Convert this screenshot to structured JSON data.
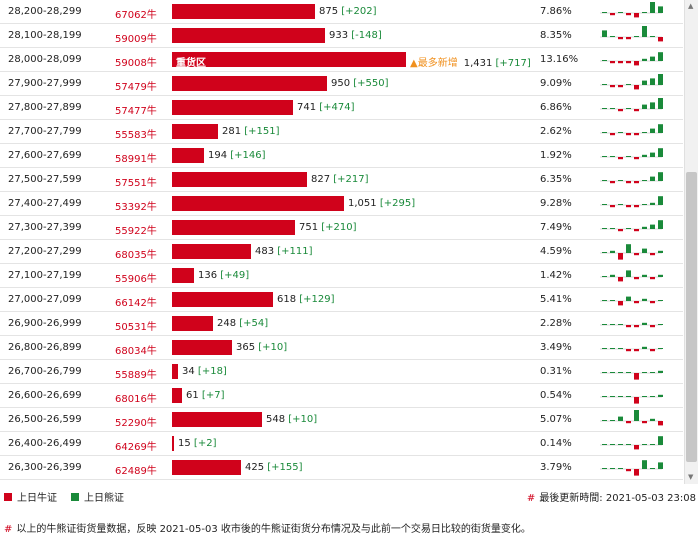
{
  "colors": {
    "bull": "#d0021b",
    "bear": "#1a8a3a",
    "newest": "#f0901e"
  },
  "table": {
    "max_qty": 1431,
    "rows": [
      {
        "range": "28,200-28,299",
        "code": "67062牛",
        "qty": "875",
        "delta": "[+202]",
        "qty_value": 875,
        "pct": "7.86%",
        "spark": [
          0,
          -1,
          0,
          -1,
          -2,
          0,
          5,
          3
        ]
      },
      {
        "range": "28,100-28,199",
        "code": "59009牛",
        "qty": "933",
        "delta": "[-148]",
        "qty_value": 933,
        "pct": "8.35%",
        "spark": [
          3,
          0,
          -1,
          -1,
          0,
          5,
          0,
          -2
        ]
      },
      {
        "range": "28,000-28,099",
        "code": "59008牛",
        "qty": "1,431",
        "delta": "[+717]",
        "qty_value": 1431,
        "pct": "13.16%",
        "tag": "重货区",
        "newest": "▲最多新增",
        "spark": [
          0,
          -1,
          -1,
          -1,
          -2,
          1,
          2,
          4
        ]
      },
      {
        "range": "27,900-27,999",
        "code": "57479牛",
        "qty": "950",
        "delta": "[+550]",
        "qty_value": 950,
        "pct": "9.09%",
        "spark": [
          0,
          -1,
          -1,
          0,
          -2,
          2,
          3,
          5
        ]
      },
      {
        "range": "27,800-27,899",
        "code": "57477牛",
        "qty": "741",
        "delta": "[+474]",
        "qty_value": 741,
        "pct": "6.86%",
        "spark": [
          0,
          0,
          -1,
          0,
          -1,
          2,
          3,
          5
        ]
      },
      {
        "range": "27,700-27,799",
        "code": "55583牛",
        "qty": "281",
        "delta": "[+151]",
        "qty_value": 281,
        "pct": "2.62%",
        "spark": [
          0,
          -1,
          0,
          -1,
          -1,
          0,
          2,
          4
        ]
      },
      {
        "range": "27,600-27,699",
        "code": "58991牛",
        "qty": "194",
        "delta": "[+146]",
        "qty_value": 194,
        "pct": "1.92%",
        "spark": [
          0,
          0,
          -1,
          0,
          -1,
          1,
          2,
          4
        ]
      },
      {
        "range": "27,500-27,599",
        "code": "57551牛",
        "qty": "827",
        "delta": "[+217]",
        "qty_value": 827,
        "pct": "6.35%",
        "spark": [
          0,
          -1,
          0,
          -1,
          -1,
          0,
          2,
          4
        ]
      },
      {
        "range": "27,400-27,499",
        "code": "53392牛",
        "qty": "1,051",
        "delta": "[+295]",
        "qty_value": 1051,
        "pct": "9.28%",
        "spark": [
          0,
          -1,
          0,
          -1,
          -1,
          0,
          1,
          4
        ]
      },
      {
        "range": "27,300-27,399",
        "code": "55922牛",
        "qty": "751",
        "delta": "[+210]",
        "qty_value": 751,
        "pct": "7.49%",
        "spark": [
          0,
          0,
          -1,
          0,
          -1,
          1,
          2,
          4
        ]
      },
      {
        "range": "27,200-27,299",
        "code": "68035牛",
        "qty": "483",
        "delta": "[+111]",
        "qty_value": 483,
        "pct": "4.59%",
        "spark": [
          0,
          1,
          -3,
          4,
          -1,
          2,
          -1,
          1
        ]
      },
      {
        "range": "27,100-27,199",
        "code": "55906牛",
        "qty": "136",
        "delta": "[+49]",
        "qty_value": 136,
        "pct": "1.42%",
        "spark": [
          0,
          1,
          -2,
          3,
          -1,
          1,
          -1,
          1
        ]
      },
      {
        "range": "27,000-27,099",
        "code": "66142牛",
        "qty": "618",
        "delta": "[+129]",
        "qty_value": 618,
        "pct": "5.41%",
        "spark": [
          0,
          0,
          -2,
          2,
          -1,
          1,
          -1,
          0
        ]
      },
      {
        "range": "26,900-26,999",
        "code": "50531牛",
        "qty": "248",
        "delta": "[+54]",
        "qty_value": 248,
        "pct": "2.28%",
        "spark": [
          0,
          0,
          0,
          -1,
          -1,
          1,
          -1,
          0
        ]
      },
      {
        "range": "26,800-26,899",
        "code": "68034牛",
        "qty": "365",
        "delta": "[+10]",
        "qty_value": 365,
        "pct": "3.49%",
        "spark": [
          0,
          0,
          0,
          -1,
          -1,
          1,
          -1,
          0
        ]
      },
      {
        "range": "26,700-26,799",
        "code": "55889牛",
        "qty": "34",
        "delta": "[+18]",
        "qty_value": 34,
        "pct": "0.31%",
        "spark": [
          0,
          0,
          0,
          0,
          -3,
          0,
          0,
          1
        ]
      },
      {
        "range": "26,600-26,699",
        "code": "68016牛",
        "qty": "61",
        "delta": "[+7]",
        "qty_value": 61,
        "pct": "0.54%",
        "spark": [
          0,
          0,
          0,
          0,
          -3,
          0,
          0,
          1
        ]
      },
      {
        "range": "26,500-26,599",
        "code": "52290牛",
        "qty": "548",
        "delta": "[+10]",
        "qty_value": 548,
        "pct": "5.07%",
        "spark": [
          0,
          0,
          2,
          -1,
          5,
          -1,
          1,
          -2
        ]
      },
      {
        "range": "26,400-26,499",
        "code": "64269牛",
        "qty": "15",
        "delta": "[+2]",
        "qty_value": 15,
        "pct": "0.14%",
        "spark": [
          0,
          0,
          0,
          0,
          -2,
          0,
          0,
          4
        ]
      },
      {
        "range": "26,300-26,399",
        "code": "62489牛",
        "qty": "425",
        "delta": "[+155]",
        "qty_value": 425,
        "pct": "3.79%",
        "spark": [
          0,
          0,
          0,
          -1,
          -3,
          4,
          0,
          3
        ]
      }
    ]
  },
  "legend": {
    "bull_label": "上日牛证",
    "bear_label": "上日熊证"
  },
  "updated": {
    "hash": "#",
    "label": "最後更新時間:",
    "value": "2021-05-03 23:08"
  },
  "note": {
    "hash": "#",
    "text": "以上的牛熊证街货量数据，反映 2021-05-03 收市後的牛熊证街货分布情况及与此前一个交易日比较的街货量变化。"
  }
}
